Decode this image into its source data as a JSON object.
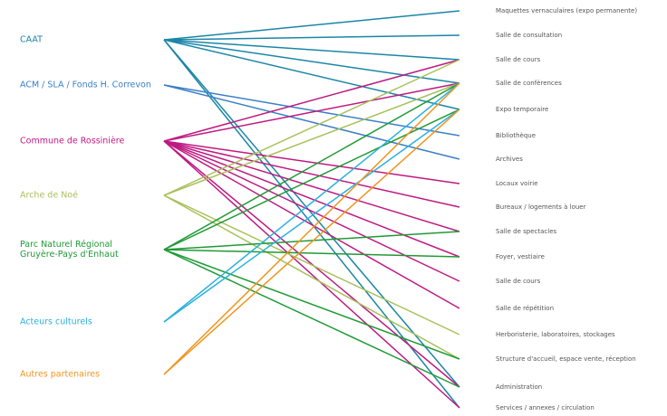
{
  "sources": [
    {
      "label": "CAAT",
      "color": "#1a86a6"
    },
    {
      "label": "ACM / SLA / Fonds H. Correvon",
      "color": "#3b80c6"
    },
    {
      "label": "Commune de Rossinière",
      "color": "#be1a82"
    },
    {
      "label": "Arche de Noé",
      "color": "#a8c15c"
    },
    {
      "label": "Parc Naturel Régional\nGruyère-Pays d'Enhaut",
      "color": "#1f9a36"
    },
    {
      "label": "Acteurs culturels",
      "color": "#2ab1de"
    },
    {
      "label": "Autres partenaires",
      "color": "#ef951f"
    }
  ],
  "targets": [
    "Maquettes vernaculaires (expo permanente)",
    "Salle de consultation",
    "Salle de cours",
    "Salle de conférences",
    "Expo temporaire",
    "Bibliothèque",
    "Archives",
    "Locaux voirie",
    "Bureaux / logements à louer",
    "Salle de spectacles",
    "Foyer, vestiaire",
    "Salle de cours",
    "Salle de répétition",
    "Herboristerie, laboratoires, stockages",
    "Structure d'accueil, espace vente, réception",
    "Administration",
    "Services / annexes / circulation"
  ],
  "links": [
    [
      0,
      0
    ],
    [
      0,
      1
    ],
    [
      0,
      2
    ],
    [
      0,
      3
    ],
    [
      0,
      4
    ],
    [
      0,
      15
    ],
    [
      0,
      16
    ],
    [
      1,
      5
    ],
    [
      1,
      6
    ],
    [
      2,
      2
    ],
    [
      2,
      3
    ],
    [
      2,
      7
    ],
    [
      2,
      8
    ],
    [
      2,
      9
    ],
    [
      2,
      10
    ],
    [
      2,
      11
    ],
    [
      2,
      12
    ],
    [
      2,
      15
    ],
    [
      2,
      16
    ],
    [
      3,
      2
    ],
    [
      3,
      3
    ],
    [
      3,
      13
    ],
    [
      3,
      14
    ],
    [
      4,
      3
    ],
    [
      4,
      4
    ],
    [
      4,
      9
    ],
    [
      4,
      10
    ],
    [
      4,
      14
    ],
    [
      4,
      15
    ],
    [
      5,
      3
    ],
    [
      5,
      4
    ],
    [
      6,
      3
    ],
    [
      6,
      4
    ]
  ]
}
